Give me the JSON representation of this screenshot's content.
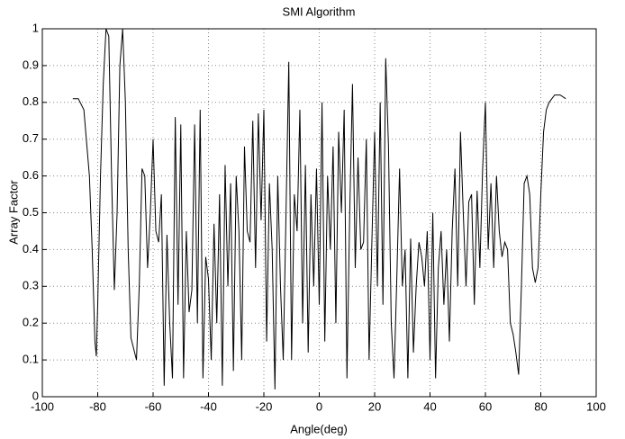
{
  "chart_data": {
    "type": "line",
    "title": "SMI Algorithm",
    "xlabel": "Angle(deg)",
    "ylabel": "Array Factor",
    "x": [
      -89,
      -87,
      -85,
      -83,
      -82,
      -81,
      -80.5,
      -80,
      -79,
      -78,
      -77,
      -76,
      -75,
      -74,
      -73,
      -72,
      -71,
      -70,
      -69,
      -68,
      -67,
      -66,
      -65,
      -64,
      -63,
      -62,
      -61,
      -60,
      -59,
      -58,
      -57,
      -56,
      -55,
      -54,
      -53,
      -52,
      -51,
      -50,
      -49,
      -48,
      -47,
      -46,
      -45,
      -44,
      -43,
      -42,
      -41,
      -40,
      -39,
      -38,
      -37,
      -36,
      -35,
      -34,
      -33,
      -32,
      -31,
      -30,
      -29,
      -28,
      -27,
      -26,
      -25,
      -24,
      -23,
      -22,
      -21,
      -20,
      -19,
      -18,
      -17,
      -16,
      -15,
      -14,
      -13,
      -12,
      -11,
      -10,
      -9,
      -8,
      -7,
      -6,
      -5,
      -4,
      -3,
      -2,
      -1,
      0,
      1,
      2,
      3,
      4,
      5,
      6,
      7,
      8,
      9,
      10,
      11,
      12,
      13,
      14,
      15,
      16,
      17,
      18,
      19,
      20,
      21,
      22,
      23,
      24,
      25,
      26,
      27,
      28,
      29,
      30,
      31,
      32,
      33,
      34,
      35,
      36,
      37,
      38,
      39,
      40,
      41,
      42,
      43,
      44,
      45,
      46,
      47,
      48,
      49,
      50,
      51,
      52,
      53,
      54,
      55,
      56,
      57,
      58,
      59,
      60,
      61,
      62,
      63,
      64,
      65,
      66,
      67,
      68,
      69,
      70,
      71,
      72,
      73,
      74,
      75,
      76,
      77,
      78,
      79,
      80,
      81,
      82,
      83,
      85,
      87,
      89
    ],
    "series": [
      {
        "name": "Array Factor",
        "color": "#000000",
        "values": [
          0.81,
          0.81,
          0.78,
          0.6,
          0.4,
          0.15,
          0.11,
          0.25,
          0.6,
          0.85,
          1.0,
          0.98,
          0.6,
          0.29,
          0.5,
          0.9,
          1.0,
          0.8,
          0.4,
          0.16,
          0.13,
          0.1,
          0.3,
          0.62,
          0.6,
          0.35,
          0.5,
          0.7,
          0.45,
          0.42,
          0.55,
          0.03,
          0.44,
          0.2,
          0.05,
          0.76,
          0.25,
          0.74,
          0.05,
          0.45,
          0.23,
          0.29,
          0.74,
          0.2,
          0.78,
          0.05,
          0.38,
          0.32,
          0.1,
          0.47,
          0.2,
          0.55,
          0.03,
          0.63,
          0.3,
          0.58,
          0.07,
          0.6,
          0.45,
          0.1,
          0.68,
          0.45,
          0.42,
          0.75,
          0.35,
          0.77,
          0.48,
          0.78,
          0.15,
          0.58,
          0.4,
          0.02,
          0.6,
          0.3,
          0.1,
          0.5,
          0.91,
          0.1,
          0.55,
          0.45,
          0.78,
          0.2,
          0.63,
          0.12,
          0.55,
          0.3,
          0.62,
          0.25,
          0.8,
          0.15,
          0.6,
          0.4,
          0.68,
          0.2,
          0.72,
          0.5,
          0.78,
          0.05,
          0.5,
          0.85,
          0.35,
          0.65,
          0.4,
          0.42,
          0.7,
          0.1,
          0.42,
          0.72,
          0.3,
          0.8,
          0.25,
          0.92,
          0.68,
          0.2,
          0.05,
          0.32,
          0.62,
          0.3,
          0.4,
          0.05,
          0.43,
          0.12,
          0.3,
          0.42,
          0.38,
          0.3,
          0.45,
          0.1,
          0.5,
          0.05,
          0.35,
          0.45,
          0.25,
          0.4,
          0.15,
          0.45,
          0.62,
          0.3,
          0.72,
          0.5,
          0.3,
          0.53,
          0.55,
          0.25,
          0.56,
          0.35,
          0.62,
          0.8,
          0.4,
          0.58,
          0.35,
          0.6,
          0.45,
          0.38,
          0.42,
          0.4,
          0.2,
          0.17,
          0.12,
          0.06,
          0.3,
          0.58,
          0.6,
          0.55,
          0.35,
          0.31,
          0.35,
          0.55,
          0.72,
          0.78,
          0.8,
          0.82,
          0.82,
          0.81
        ]
      }
    ],
    "xlim": [
      -100,
      100
    ],
    "xticks": [
      -100,
      -80,
      -60,
      -40,
      -20,
      0,
      20,
      40,
      60,
      80,
      100
    ],
    "ylim": [
      0,
      1
    ],
    "yticks": [
      0,
      0.1,
      0.2,
      0.3,
      0.4,
      0.5,
      0.6,
      0.7,
      0.8,
      0.9,
      1
    ],
    "grid": true
  }
}
